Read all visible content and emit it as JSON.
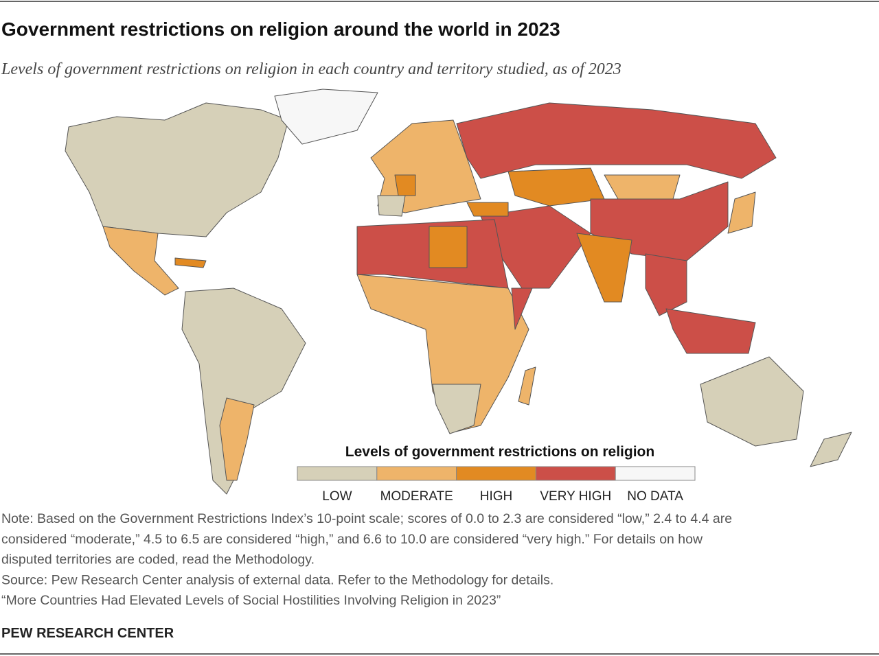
{
  "header": {
    "title": "Government restrictions on religion around the world in 2023",
    "subtitle": "Levels of government restrictions on religion in each country and territory studied, as of 2023"
  },
  "legend": {
    "title": "Levels of government restrictions on religion",
    "items": [
      {
        "label": "LOW",
        "color": "#d6d0b8"
      },
      {
        "label": "MODERATE",
        "color": "#eeb46a"
      },
      {
        "label": "HIGH",
        "color": "#e28a22"
      },
      {
        "label": "VERY HIGH",
        "color": "#cc4f48"
      },
      {
        "label": "NO DATA",
        "color": "#f7f7f7"
      }
    ]
  },
  "footer": {
    "notes": [
      "Note: Based on the Government Restrictions Index’s 10-point scale; scores of 0.0 to 2.3 are considered “low,” 2.4 to 4.4 are",
      "considered “moderate,” 4.5 to 6.5 are considered “high,” and 6.6 to 10.0 are considered “very high.” For details on how",
      "disputed territories are coded, read the Methodology.",
      "Source: Pew Research Center analysis of external data. Refer to the Methodology for details.",
      "“More Countries Had Elevated Levels of Social Hostilities Involving Religion in 2023”"
    ],
    "brand": "PEW RESEARCH CENTER"
  }
}
